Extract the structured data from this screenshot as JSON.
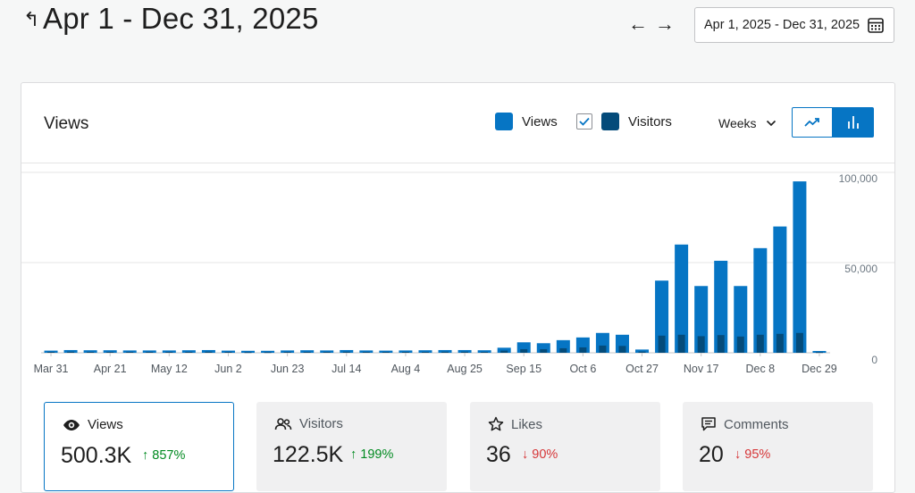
{
  "header": {
    "title": "Apr 1 - Dec 31, 2025",
    "back_icon": "↵",
    "prev_icon": "←",
    "next_icon": "→",
    "date_range_label": "Apr 1, 2025 - Dec 31, 2025"
  },
  "chart_panel": {
    "title": "Views",
    "legend_views_label": "Views",
    "legend_visitors_label": "Visitors",
    "visitors_checked": true,
    "period_label": "Weeks",
    "active_view": "bar"
  },
  "colors": {
    "views": "#0675c4",
    "visitors": "#044b7a",
    "accent": "#0675c4",
    "up": "#008a20",
    "down": "#d63638"
  },
  "chart_data": {
    "type": "bar",
    "x_tick_labels": [
      "Mar 31",
      "Apr 21",
      "May 12",
      "Jun 2",
      "Jun 23",
      "Jul 14",
      "Aug 4",
      "Aug 25",
      "Sep 15",
      "Oct 6",
      "Oct 27",
      "Nov 17",
      "Dec 8",
      "Dec 29"
    ],
    "categories": [
      "Mar 31",
      "Apr 7",
      "Apr 14",
      "Apr 21",
      "Apr 28",
      "May 5",
      "May 12",
      "May 19",
      "May 26",
      "Jun 2",
      "Jun 9",
      "Jun 16",
      "Jun 23",
      "Jun 30",
      "Jul 7",
      "Jul 14",
      "Jul 21",
      "Jul 28",
      "Aug 4",
      "Aug 11",
      "Aug 18",
      "Aug 25",
      "Sep 1",
      "Sep 8",
      "Sep 15",
      "Sep 22",
      "Sep 29",
      "Oct 6",
      "Oct 13",
      "Oct 20",
      "Oct 27",
      "Nov 3",
      "Nov 10",
      "Nov 17",
      "Nov 24",
      "Dec 1",
      "Dec 8",
      "Dec 15",
      "Dec 22",
      "Dec 29"
    ],
    "series": [
      {
        "name": "Views",
        "values": [
          1200,
          1500,
          1400,
          1400,
          1300,
          1300,
          1300,
          1400,
          1500,
          1200,
          1100,
          1100,
          1300,
          1400,
          1300,
          1500,
          1300,
          1200,
          1300,
          1400,
          1500,
          1500,
          1400,
          2800,
          5800,
          5300,
          7000,
          8500,
          11000,
          10000,
          1800,
          40000,
          60000,
          37000,
          51000,
          37000,
          58000,
          70000,
          95000,
          1000
        ]
      },
      {
        "name": "Visitors",
        "values": [
          500,
          600,
          500,
          500,
          500,
          500,
          500,
          500,
          600,
          500,
          400,
          400,
          500,
          500,
          500,
          600,
          500,
          500,
          500,
          500,
          600,
          600,
          500,
          1200,
          2000,
          2000,
          2500,
          3000,
          4000,
          3800,
          700,
          9500,
          10000,
          9200,
          9800,
          9000,
          10000,
          10500,
          11000,
          400
        ]
      }
    ],
    "y_tick_labels": [
      "0",
      "50,000",
      "100,000"
    ],
    "ylim": [
      0,
      100000
    ],
    "grid": true
  },
  "stats": [
    {
      "label": "Views",
      "icon": "eye-icon",
      "value": "500.3K",
      "change": "857%",
      "direction": "up",
      "active": true
    },
    {
      "label": "Visitors",
      "icon": "people-icon",
      "value": "122.5K",
      "change": "199%",
      "direction": "up",
      "active": false
    },
    {
      "label": "Likes",
      "icon": "star-icon",
      "value": "36",
      "change": "90%",
      "direction": "down",
      "active": false
    },
    {
      "label": "Comments",
      "icon": "comment-icon",
      "value": "20",
      "change": "95%",
      "direction": "down",
      "active": false
    }
  ],
  "arrows": {
    "up": "↑",
    "down": "↓"
  }
}
